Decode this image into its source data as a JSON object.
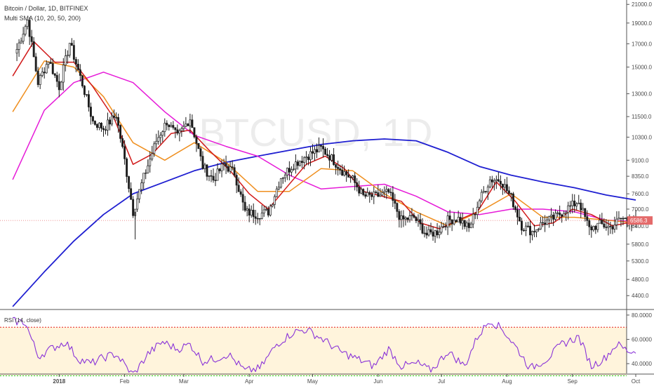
{
  "header": {
    "symbol_line": "Bitcoin / Dollar, 1D, BITFINEX",
    "indicator_line": "Multi SMA (10, 20, 50, 200)",
    "watermark": "BTCUSD, 1D",
    "rsi_label": "RSI (14, close)"
  },
  "price_badge": "6586.3",
  "colors": {
    "bull": "#1d1d1d",
    "sma10": "#d11a1a",
    "sma20": "#ef8f1f",
    "sma50": "#e61bd8",
    "sma200": "#1f1fd1",
    "rsi": "#8a33d8",
    "rsi_upper": "#e51b1b",
    "rsi_lower": "#1fcf1f",
    "rsi_band": "#fff4dc",
    "last_price": "#e46a6a"
  },
  "chart_data": [
    {
      "type": "candlestick",
      "title": "Bitcoin / Dollar, 1D, BITFINEX",
      "yscale": "log",
      "ylim": [
        4100,
        21500
      ],
      "y_ticks": [
        "21000.0",
        "19000.0",
        "17000.0",
        "15000.0",
        "13000.0",
        "11500.0",
        "10300.0",
        "9100.0",
        "8350.0",
        "7600.0",
        "7000.0",
        "6400.0",
        "5800.0",
        "5300.0",
        "4800.0",
        "4400.0"
      ],
      "x_ticks": [
        "2018",
        "Feb",
        "Mar",
        "Apr",
        "May",
        "Jun",
        "Jul",
        "Aug",
        "Sep",
        "Oct"
      ],
      "last_price": 6586.3,
      "close_path": [
        [
          "2017-12-12",
          16500
        ],
        [
          "2017-12-17",
          19300
        ],
        [
          "2017-12-22",
          13800
        ],
        [
          "2017-12-27",
          15600
        ],
        [
          "2018-01-01",
          13500
        ],
        [
          "2018-01-06",
          17100
        ],
        [
          "2018-01-12",
          13700
        ],
        [
          "2018-01-17",
          11200
        ],
        [
          "2018-01-22",
          10800
        ],
        [
          "2018-01-28",
          11600
        ],
        [
          "2018-02-01",
          9100
        ],
        [
          "2018-02-05",
          6900
        ],
        [
          "2018-02-10",
          8300
        ],
        [
          "2018-02-16",
          10100
        ],
        [
          "2018-02-21",
          11200
        ],
        [
          "2018-02-26",
          10300
        ],
        [
          "2018-03-04",
          11400
        ],
        [
          "2018-03-10",
          8800
        ],
        [
          "2018-03-15",
          8200
        ],
        [
          "2018-03-20",
          8900
        ],
        [
          "2018-03-25",
          8500
        ],
        [
          "2018-03-30",
          6900
        ],
        [
          "2018-04-05",
          6800
        ],
        [
          "2018-04-10",
          6900
        ],
        [
          "2018-04-16",
          8300
        ],
        [
          "2018-04-22",
          8900
        ],
        [
          "2018-04-28",
          9300
        ],
        [
          "2018-05-05",
          9700
        ],
        [
          "2018-05-10",
          9200
        ],
        [
          "2018-05-15",
          8600
        ],
        [
          "2018-05-20",
          8200
        ],
        [
          "2018-05-25",
          7500
        ],
        [
          "2018-05-31",
          7500
        ],
        [
          "2018-06-06",
          7650
        ],
        [
          "2018-06-12",
          6600
        ],
        [
          "2018-06-18",
          6700
        ],
        [
          "2018-06-24",
          6100
        ],
        [
          "2018-06-29",
          6200
        ],
        [
          "2018-07-04",
          6600
        ],
        [
          "2018-07-09",
          6650
        ],
        [
          "2018-07-14",
          6300
        ],
        [
          "2018-07-19",
          7350
        ],
        [
          "2018-07-24",
          8200
        ],
        [
          "2018-07-29",
          8200
        ],
        [
          "2018-08-03",
          7450
        ],
        [
          "2018-08-08",
          6400
        ],
        [
          "2018-08-13",
          6200
        ],
        [
          "2018-08-18",
          6500
        ],
        [
          "2018-08-24",
          6700
        ],
        [
          "2018-08-29",
          7000
        ],
        [
          "2018-09-04",
          7300
        ],
        [
          "2018-09-09",
          6300
        ],
        [
          "2018-09-14",
          6450
        ],
        [
          "2018-09-19",
          6350
        ],
        [
          "2018-09-24",
          6650
        ],
        [
          "2018-09-29",
          6600
        ],
        [
          "2018-10-01",
          6586
        ]
      ],
      "series": [
        {
          "name": "SMA 10",
          "values": [
            [
              "2017-12-10",
              14300
            ],
            [
              "2017-12-20",
              17200
            ],
            [
              "2017-12-30",
              15400
            ],
            [
              "2018-01-08",
              15400
            ],
            [
              "2018-01-17",
              13500
            ],
            [
              "2018-01-27",
              11400
            ],
            [
              "2018-02-05",
              8900
            ],
            [
              "2018-02-14",
              9400
            ],
            [
              "2018-02-23",
              10500
            ],
            [
              "2018-03-04",
              10700
            ],
            [
              "2018-03-13",
              9600
            ],
            [
              "2018-03-23",
              8600
            ],
            [
              "2018-04-01",
              7600
            ],
            [
              "2018-04-10",
              7000
            ],
            [
              "2018-04-19",
              7900
            ],
            [
              "2018-04-28",
              8900
            ],
            [
              "2018-05-07",
              9300
            ],
            [
              "2018-05-16",
              8700
            ],
            [
              "2018-05-25",
              7700
            ],
            [
              "2018-06-03",
              7500
            ],
            [
              "2018-06-12",
              7300
            ],
            [
              "2018-06-21",
              6500
            ],
            [
              "2018-06-30",
              6300
            ],
            [
              "2018-07-09",
              6600
            ],
            [
              "2018-07-18",
              6900
            ],
            [
              "2018-07-27",
              8100
            ],
            [
              "2018-08-05",
              7300
            ],
            [
              "2018-08-14",
              6400
            ],
            [
              "2018-08-23",
              6500
            ],
            [
              "2018-09-01",
              7000
            ],
            [
              "2018-09-10",
              6800
            ],
            [
              "2018-09-20",
              6400
            ],
            [
              "2018-10-01",
              6560
            ]
          ]
        },
        {
          "name": "SMA 20",
          "values": [
            [
              "2017-12-10",
              11800
            ],
            [
              "2017-12-25",
              15500
            ],
            [
              "2018-01-08",
              15000
            ],
            [
              "2018-01-22",
              12800
            ],
            [
              "2018-02-05",
              10000
            ],
            [
              "2018-02-20",
              9100
            ],
            [
              "2018-03-06",
              10000
            ],
            [
              "2018-03-21",
              9000
            ],
            [
              "2018-04-05",
              7700
            ],
            [
              "2018-04-20",
              7700
            ],
            [
              "2018-05-05",
              8700
            ],
            [
              "2018-05-20",
              8600
            ],
            [
              "2018-06-04",
              7600
            ],
            [
              "2018-06-19",
              6900
            ],
            [
              "2018-07-04",
              6400
            ],
            [
              "2018-07-19",
              6900
            ],
            [
              "2018-08-03",
              7600
            ],
            [
              "2018-08-18",
              6700
            ],
            [
              "2018-09-02",
              6700
            ],
            [
              "2018-09-17",
              6600
            ],
            [
              "2018-10-01",
              6500
            ]
          ]
        },
        {
          "name": "SMA 50",
          "values": [
            [
              "2017-12-10",
              8200
            ],
            [
              "2017-12-25",
              11900
            ],
            [
              "2018-01-08",
              13800
            ],
            [
              "2018-01-22",
              14600
            ],
            [
              "2018-02-05",
              13800
            ],
            [
              "2018-02-20",
              11800
            ],
            [
              "2018-03-06",
              10400
            ],
            [
              "2018-03-21",
              9800
            ],
            [
              "2018-04-05",
              9300
            ],
            [
              "2018-04-20",
              8400
            ],
            [
              "2018-05-05",
              7800
            ],
            [
              "2018-05-20",
              7900
            ],
            [
              "2018-06-04",
              8000
            ],
            [
              "2018-06-19",
              7500
            ],
            [
              "2018-07-04",
              6900
            ],
            [
              "2018-07-19",
              6800
            ],
            [
              "2018-08-03",
              7000
            ],
            [
              "2018-08-18",
              7000
            ],
            [
              "2018-09-02",
              6900
            ],
            [
              "2018-09-17",
              6600
            ],
            [
              "2018-10-01",
              6550
            ]
          ]
        },
        {
          "name": "SMA 200",
          "values": [
            [
              "2017-12-10",
              4150
            ],
            [
              "2017-12-25",
              5000
            ],
            [
              "2018-01-08",
              5900
            ],
            [
              "2018-01-22",
              6800
            ],
            [
              "2018-02-05",
              7600
            ],
            [
              "2018-02-20",
              8100
            ],
            [
              "2018-03-06",
              8600
            ],
            [
              "2018-03-21",
              9000
            ],
            [
              "2018-04-05",
              9300
            ],
            [
              "2018-04-20",
              9600
            ],
            [
              "2018-05-05",
              9900
            ],
            [
              "2018-05-20",
              10100
            ],
            [
              "2018-06-04",
              10200
            ],
            [
              "2018-06-19",
              10100
            ],
            [
              "2018-07-04",
              9500
            ],
            [
              "2018-07-19",
              8800
            ],
            [
              "2018-08-03",
              8400
            ],
            [
              "2018-08-18",
              8100
            ],
            [
              "2018-09-02",
              7850
            ],
            [
              "2018-09-17",
              7550
            ],
            [
              "2018-10-01",
              7350
            ]
          ]
        }
      ]
    },
    {
      "type": "line",
      "title": "RSI (14, close)",
      "ylim": [
        32,
        84
      ],
      "y_ticks": [
        "80.0000",
        "60.0000",
        "40.0000"
      ],
      "upper_level": 70,
      "lower_level": 30,
      "series": [
        {
          "name": "RSI (14, close)",
          "values": [
            [
              "2017-12-10",
              75
            ],
            [
              "2017-12-16",
              74
            ],
            [
              "2017-12-22",
              46
            ],
            [
              "2017-12-28",
              52
            ],
            [
              "2018-01-04",
              58
            ],
            [
              "2018-01-10",
              44
            ],
            [
              "2018-01-16",
              40
            ],
            [
              "2018-01-22",
              45
            ],
            [
              "2018-01-28",
              48
            ],
            [
              "2018-02-05",
              30
            ],
            [
              "2018-02-12",
              48
            ],
            [
              "2018-02-19",
              58
            ],
            [
              "2018-02-26",
              52
            ],
            [
              "2018-03-04",
              56
            ],
            [
              "2018-03-10",
              42
            ],
            [
              "2018-03-16",
              44
            ],
            [
              "2018-03-22",
              48
            ],
            [
              "2018-03-30",
              34
            ],
            [
              "2018-04-06",
              36
            ],
            [
              "2018-04-14",
              56
            ],
            [
              "2018-04-22",
              66
            ],
            [
              "2018-04-28",
              68
            ],
            [
              "2018-05-06",
              60
            ],
            [
              "2018-05-14",
              50
            ],
            [
              "2018-05-22",
              44
            ],
            [
              "2018-05-30",
              38
            ],
            [
              "2018-06-06",
              52
            ],
            [
              "2018-06-12",
              38
            ],
            [
              "2018-06-20",
              40
            ],
            [
              "2018-06-26",
              34
            ],
            [
              "2018-07-04",
              50
            ],
            [
              "2018-07-12",
              38
            ],
            [
              "2018-07-18",
              62
            ],
            [
              "2018-07-24",
              76
            ],
            [
              "2018-07-30",
              68
            ],
            [
              "2018-08-06",
              52
            ],
            [
              "2018-08-12",
              36
            ],
            [
              "2018-08-20",
              44
            ],
            [
              "2018-08-27",
              56
            ],
            [
              "2018-09-04",
              62
            ],
            [
              "2018-09-10",
              38
            ],
            [
              "2018-09-16",
              44
            ],
            [
              "2018-09-22",
              56
            ],
            [
              "2018-09-28",
              50
            ],
            [
              "2018-10-01",
              50
            ]
          ]
        }
      ]
    }
  ]
}
